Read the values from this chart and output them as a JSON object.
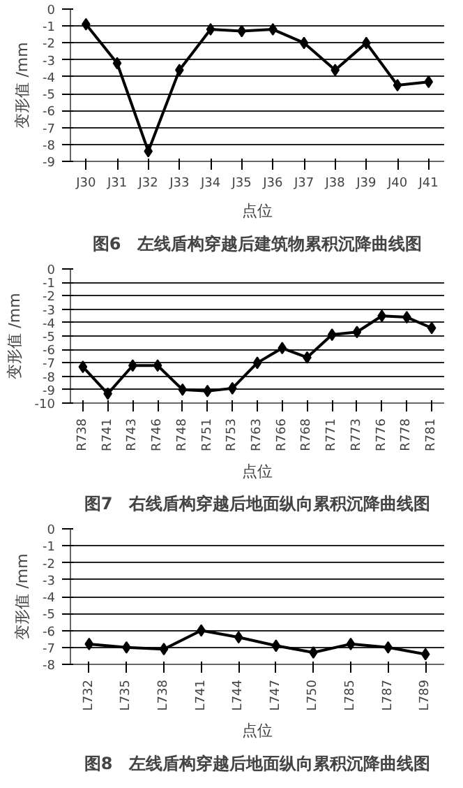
{
  "chart_data": [
    {
      "type": "line",
      "title": "图6　左线盾构穿越后建筑物累积沉降曲线图",
      "xlabel": "点位",
      "ylabel": "变形值 /mm",
      "categories": [
        "J30",
        "J31",
        "J32",
        "J33",
        "J34",
        "J35",
        "J36",
        "J37",
        "J38",
        "J39",
        "J40",
        "J41"
      ],
      "series": [
        {
          "color": "#000000",
          "values": [
            -0.9,
            -3.2,
            -8.4,
            -3.6,
            -1.2,
            -1.3,
            -1.2,
            -2.0,
            -3.6,
            -2.0,
            -4.5,
            -4.3
          ]
        }
      ],
      "ylim": [
        -9,
        0
      ],
      "yticks": [
        -9,
        -8,
        -7,
        -6,
        -5,
        -4,
        -3,
        -2,
        -1,
        0
      ],
      "grid": "y",
      "marker": "diamond",
      "line_style": "solid"
    },
    {
      "type": "line",
      "title": "图7　右线盾构穿越后地面纵向累积沉降曲线图",
      "xlabel": "点位",
      "ylabel": "变形值 /mm",
      "categories": [
        "R738",
        "R741",
        "R743",
        "R746",
        "R748",
        "R751",
        "R753",
        "R763",
        "R766",
        "R768",
        "R771",
        "R773",
        "R776",
        "R778",
        "R781"
      ],
      "series": [
        {
          "color": "#000000",
          "values": [
            -7.3,
            -9.3,
            -7.2,
            -7.2,
            -9.0,
            -9.1,
            -8.9,
            -7.0,
            -5.9,
            -6.6,
            -4.9,
            -4.7,
            -3.5,
            -3.6,
            -4.4
          ]
        }
      ],
      "ylim": [
        -10,
        0
      ],
      "yticks": [
        -10,
        -9,
        -8,
        -7,
        -6,
        -5,
        -4,
        -3,
        -2,
        -1,
        0
      ],
      "grid": "y",
      "marker": "diamond",
      "line_style": "solid"
    },
    {
      "type": "line",
      "title": "图8　左线盾构穿越后地面纵向累积沉降曲线图",
      "xlabel": "点位",
      "ylabel": "变形值 /mm",
      "categories": [
        "L732",
        "L735",
        "L738",
        "L741",
        "L744",
        "L747",
        "L750",
        "L785",
        "L787",
        "L789"
      ],
      "series": [
        {
          "color": "#000000",
          "values": [
            -6.8,
            -7.0,
            -7.1,
            -6.0,
            -6.4,
            -6.9,
            -7.3,
            -6.8,
            -7.0,
            -7.4
          ]
        }
      ],
      "ylim": [
        -8,
        0
      ],
      "yticks": [
        -8,
        -7,
        -6,
        -5,
        -4,
        -3,
        -2,
        -1,
        0
      ],
      "grid": "y",
      "marker": "diamond",
      "line_style": "solid"
    }
  ]
}
